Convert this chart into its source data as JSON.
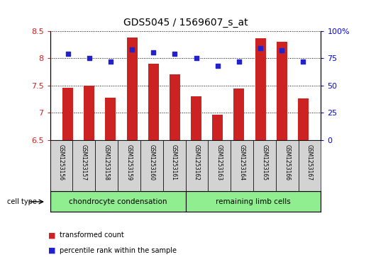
{
  "title": "GDS5045 / 1569607_s_at",
  "samples": [
    "GSM1253156",
    "GSM1253157",
    "GSM1253158",
    "GSM1253159",
    "GSM1253160",
    "GSM1253161",
    "GSM1253162",
    "GSM1253163",
    "GSM1253164",
    "GSM1253165",
    "GSM1253166",
    "GSM1253167"
  ],
  "transformed_counts": [
    7.46,
    7.5,
    7.28,
    8.38,
    7.9,
    7.7,
    7.3,
    6.97,
    7.44,
    8.37,
    8.3,
    7.26
  ],
  "percentile_ranks": [
    79,
    75,
    72,
    83,
    80,
    79,
    75,
    68,
    72,
    84,
    82,
    72
  ],
  "ylim_left": [
    6.5,
    8.5
  ],
  "ylim_right": [
    0,
    100
  ],
  "yticks_left": [
    6.5,
    7.0,
    7.5,
    8.0,
    8.5
  ],
  "yticks_right": [
    0,
    25,
    50,
    75,
    100
  ],
  "ytick_labels_right": [
    "0",
    "25",
    "50",
    "75",
    "100%"
  ],
  "bar_color": "#cc2222",
  "dot_color": "#2222cc",
  "bar_bottom": 6.5,
  "group1_label": "chondrocyte condensation",
  "group2_label": "remaining limb cells",
  "cell_type_label": "cell type",
  "legend_bar_label": "transformed count",
  "legend_dot_label": "percentile rank within the sample",
  "background_color": "#ffffff",
  "plot_bg_color": "#ffffff",
  "tick_color_left": "#cc2222",
  "tick_color_right": "#0000ff",
  "group_color": "#90ee90",
  "sample_box_color": "#d3d3d3",
  "bar_width": 0.5
}
